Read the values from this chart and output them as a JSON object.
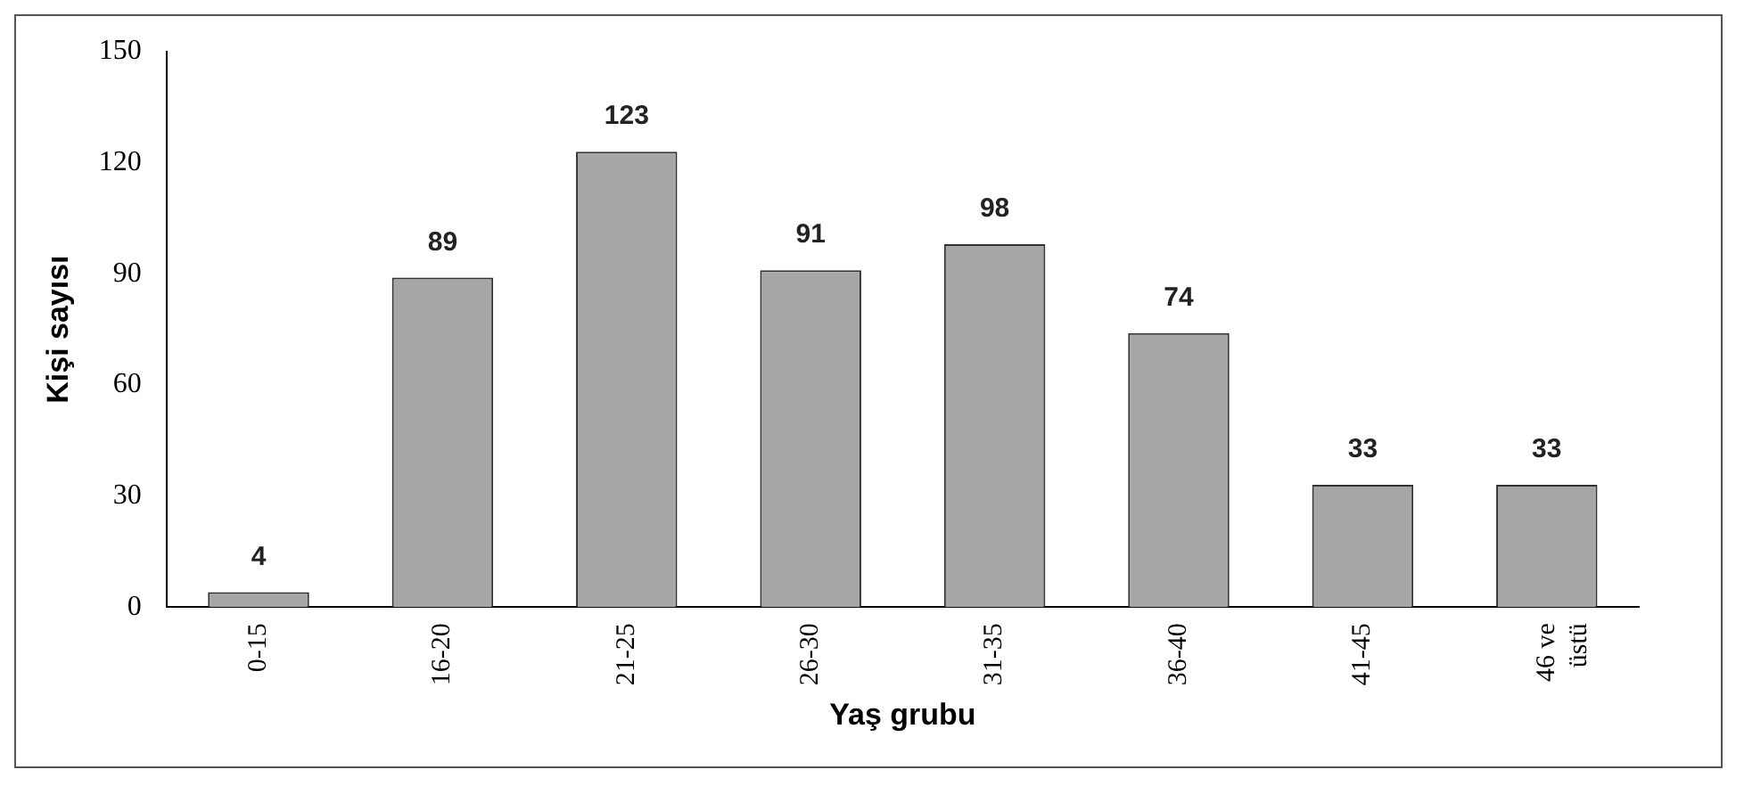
{
  "chart_data": {
    "type": "bar",
    "xlabel": "Yaş grubu",
    "ylabel": "Kişi sayısı",
    "categories": [
      "0-15",
      "16-20",
      "21-25",
      "26-30",
      "31-35",
      "36-40",
      "41-45",
      "46 ve üstü"
    ],
    "values": [
      4,
      89,
      123,
      91,
      98,
      74,
      33,
      33
    ],
    "color": "#a6a6a6",
    "ylim": [
      0,
      150
    ],
    "yticks": [
      0,
      30,
      60,
      90,
      120,
      150
    ],
    "data_labels": true,
    "grid": false,
    "legend": false
  }
}
